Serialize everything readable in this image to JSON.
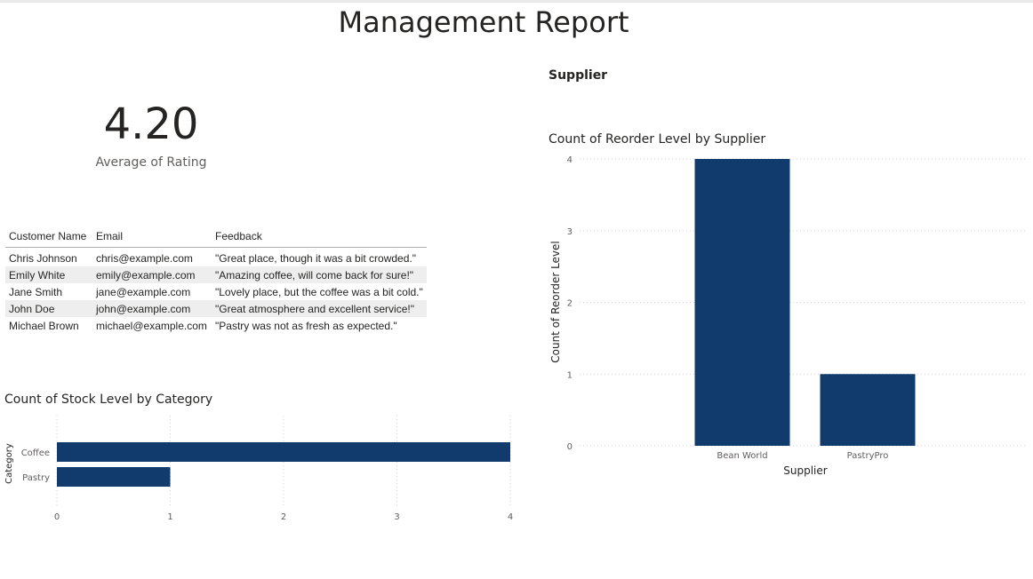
{
  "report": {
    "title": "Management Report"
  },
  "kpi": {
    "value": "4.20",
    "label": "Average of Rating"
  },
  "slicer": {
    "title": "Supplier"
  },
  "feedback_table": {
    "headers": [
      "Customer Name",
      "Email",
      "Feedback"
    ],
    "rows": [
      [
        "Chris Johnson",
        "chris@example.com",
        "\"Great place, though it was a bit crowded.\""
      ],
      [
        "Emily White",
        "emily@example.com",
        "\"Amazing coffee, will come back for sure!\""
      ],
      [
        "Jane Smith",
        "jane@example.com",
        "\"Lovely place, but the coffee was a bit cold.\""
      ],
      [
        "John Doe",
        "john@example.com",
        "\"Great atmosphere and excellent service!\""
      ],
      [
        "Michael Brown",
        "michael@example.com",
        "\"Pastry was not as fresh as expected.\""
      ]
    ]
  },
  "colors": {
    "bar": "#123b6d",
    "grid": "#d0d0d0",
    "axis_text": "#605e5c"
  },
  "chart_data": [
    {
      "type": "bar",
      "orientation": "horizontal",
      "title": "Count of Stock Level by Category",
      "categories": [
        "Coffee",
        "Pastry"
      ],
      "values": [
        4,
        1
      ],
      "xlabel": "",
      "ylabel": "Category",
      "xlim": [
        0,
        4
      ],
      "xticks": [
        0,
        1,
        2,
        3,
        4
      ],
      "grid": true
    },
    {
      "type": "bar",
      "orientation": "vertical",
      "title": "Count of Reorder Level by Supplier",
      "categories": [
        "Bean World",
        "PastryPro"
      ],
      "values": [
        4,
        1
      ],
      "xlabel": "Supplier",
      "ylabel": "Count of Reorder Level",
      "ylim": [
        0,
        4
      ],
      "yticks": [
        0,
        1,
        2,
        3,
        4
      ],
      "grid": true
    }
  ]
}
